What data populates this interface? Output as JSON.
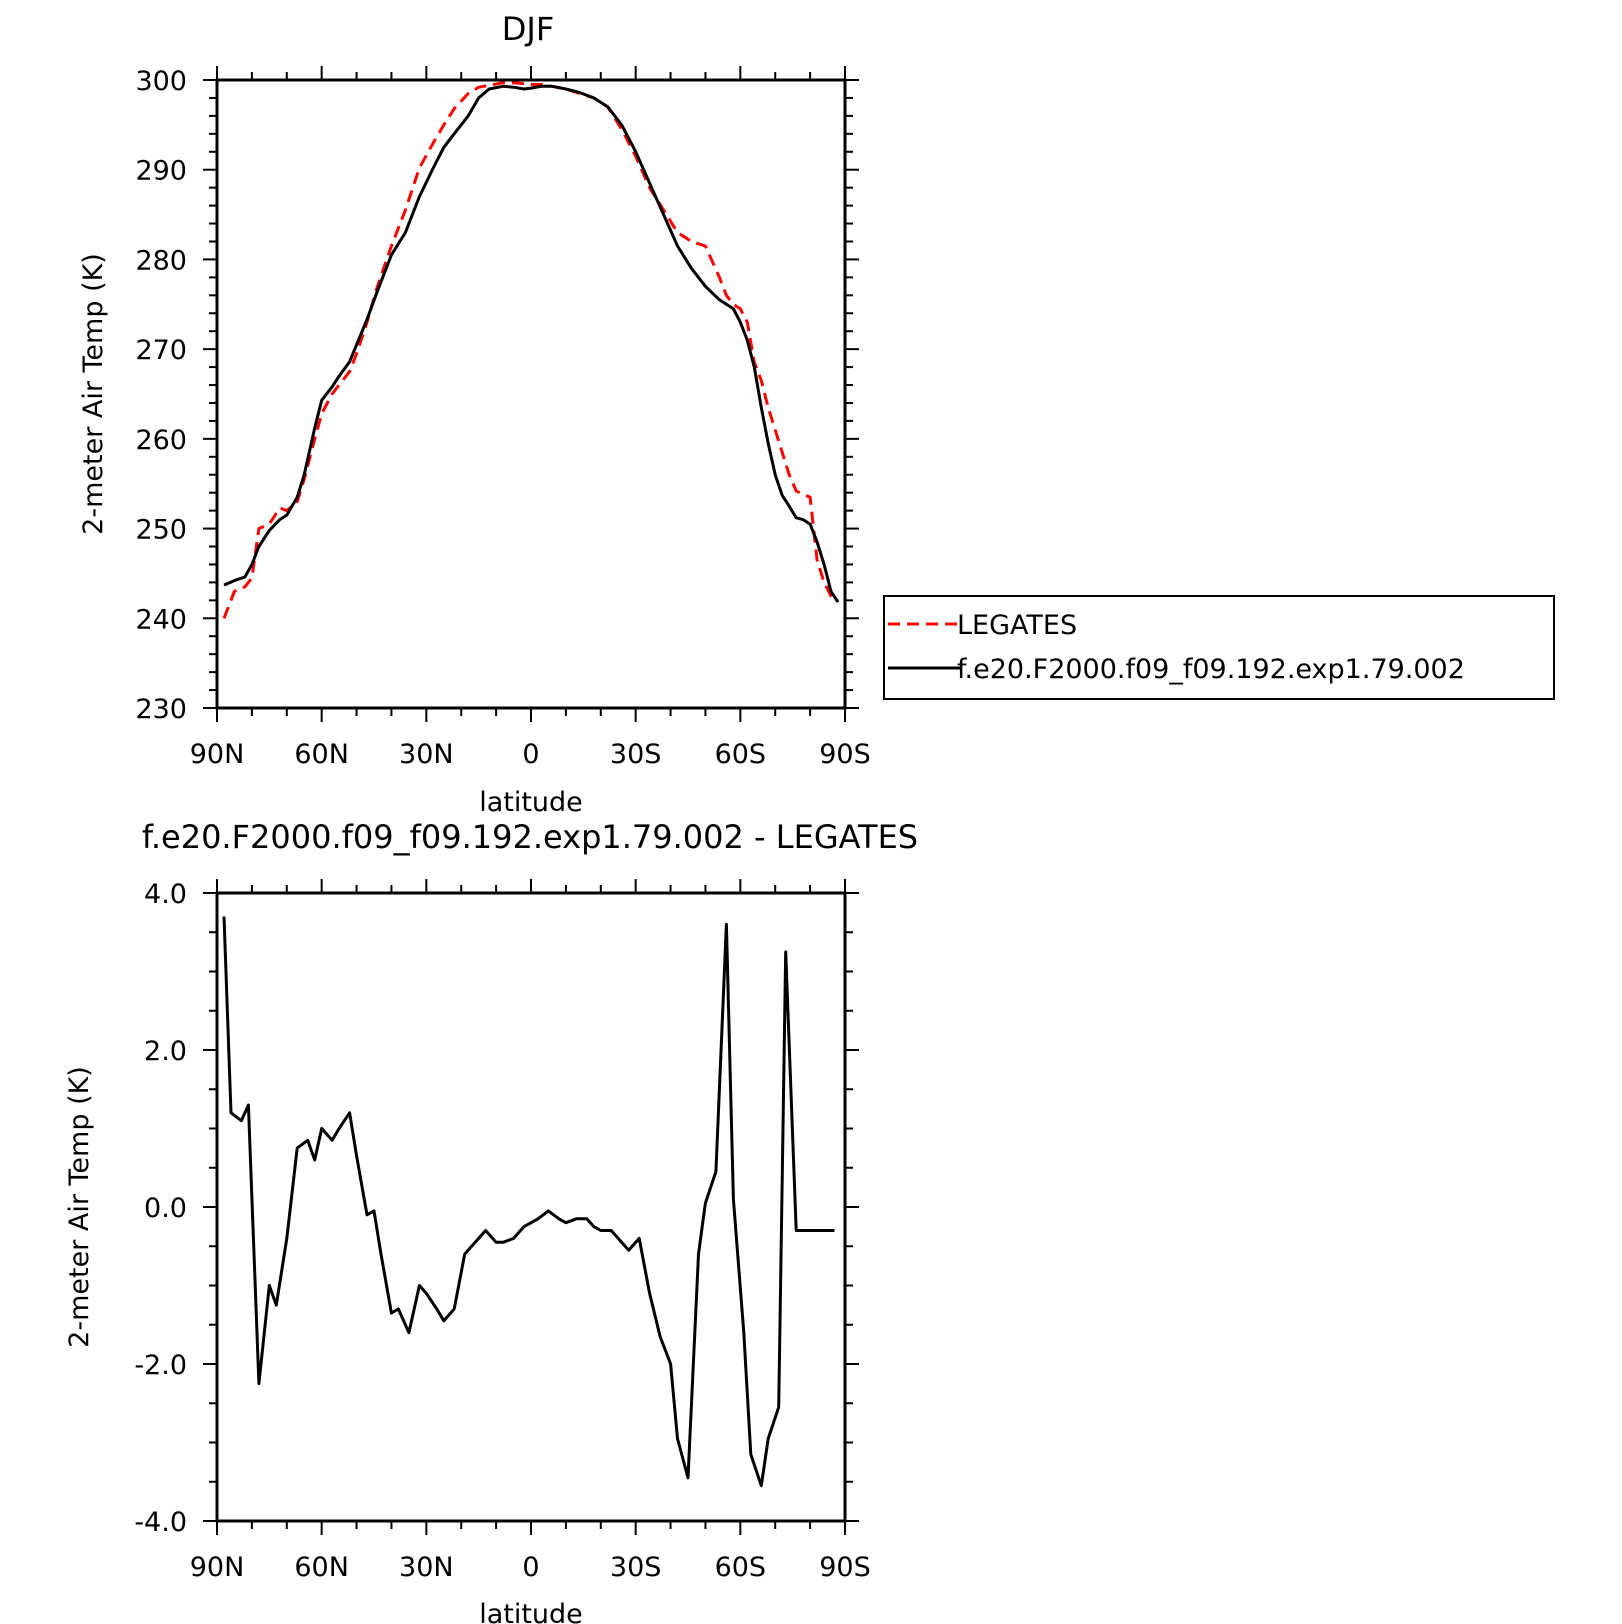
{
  "chart_data": [
    {
      "type": "line",
      "title": "DJF",
      "xlabel": "latitude",
      "ylabel": "2-meter Air Temp (K)",
      "xlim": [
        90,
        -90
      ],
      "ylim": [
        230,
        300
      ],
      "xticks": [
        {
          "value": 90,
          "label": "90N"
        },
        {
          "value": 60,
          "label": "60N"
        },
        {
          "value": 30,
          "label": "30N"
        },
        {
          "value": 0,
          "label": "0"
        },
        {
          "value": -30,
          "label": "30S"
        },
        {
          "value": -60,
          "label": "60S"
        },
        {
          "value": -90,
          "label": "90S"
        }
      ],
      "yticks": [
        {
          "value": 300,
          "label": "300"
        },
        {
          "value": 290,
          "label": "290"
        },
        {
          "value": 280,
          "label": "280"
        },
        {
          "value": 270,
          "label": "270"
        },
        {
          "value": 260,
          "label": "260"
        },
        {
          "value": 250,
          "label": "250"
        },
        {
          "value": 240,
          "label": "240"
        },
        {
          "value": 230,
          "label": "230"
        }
      ],
      "legend": {
        "placement": "right-outside"
      },
      "series": [
        {
          "name": "LEGATES",
          "color": "#ff0000",
          "dash": "dashed",
          "x": [
            88,
            85,
            82,
            80,
            78,
            75,
            72,
            70,
            67,
            65,
            62,
            60,
            57,
            55,
            52,
            50,
            47,
            44,
            40,
            36,
            32,
            28,
            25,
            22,
            18,
            15,
            12,
            8,
            5,
            2,
            0,
            -3,
            -6,
            -10,
            -14,
            -18,
            -22,
            -26,
            -30,
            -34,
            -38,
            -42,
            -46,
            -50,
            -54,
            -56,
            -58,
            -60,
            -62,
            -64,
            -66,
            -68,
            -70,
            -72,
            -74,
            -76,
            -78,
            -80,
            -82,
            -84,
            -86,
            -88
          ],
          "y": [
            240,
            243,
            243.5,
            244.5,
            250,
            250.5,
            252.3,
            252,
            253,
            255.5,
            260,
            262.8,
            265,
            266,
            267.5,
            269.5,
            273,
            277,
            281.5,
            285.5,
            290.2,
            293,
            295,
            296.8,
            298.5,
            299.2,
            299.4,
            299.7,
            299.7,
            299.6,
            299.5,
            299.5,
            299.3,
            299,
            298.5,
            298,
            297,
            294.5,
            291.5,
            288,
            285.5,
            283,
            282,
            281.5,
            278,
            276,
            275,
            274.5,
            273,
            268.5,
            266.5,
            263.5,
            261,
            258.5,
            256,
            254.2,
            253.8,
            253.5,
            246.5,
            244,
            242.5,
            242
          ]
        },
        {
          "name": "f.e20.F2000.f09_f09.192.exp1.79.002",
          "color": "#000000",
          "dash": "solid",
          "x": [
            88,
            85,
            82,
            80,
            78,
            75,
            72,
            70,
            67,
            65,
            62,
            60,
            57,
            55,
            52,
            50,
            47,
            44,
            40,
            36,
            32,
            28,
            25,
            22,
            18,
            15,
            12,
            8,
            5,
            2,
            0,
            -3,
            -6,
            -10,
            -14,
            -18,
            -22,
            -26,
            -30,
            -34,
            -38,
            -42,
            -46,
            -50,
            -54,
            -58,
            -60,
            -62,
            -64,
            -66,
            -68,
            -70,
            -72,
            -74,
            -76,
            -78,
            -80,
            -82,
            -84,
            -86,
            -88
          ],
          "y": [
            243.7,
            244.2,
            244.6,
            246,
            248,
            249.8,
            251,
            251.5,
            253.5,
            256,
            261.2,
            264.3,
            265.8,
            267,
            268.6,
            270.5,
            273.3,
            276.5,
            280.5,
            283,
            287,
            290.2,
            292.5,
            294,
            296,
            298,
            299,
            299.3,
            299.2,
            299,
            299.1,
            299.3,
            299.3,
            299,
            298.6,
            298,
            297,
            295,
            292,
            288.5,
            285,
            281.5,
            279,
            277,
            275.5,
            274.5,
            273,
            271,
            268,
            263.5,
            259.5,
            256,
            253.7,
            252.5,
            251.2,
            251,
            250.5,
            248.5,
            246,
            243,
            241.8
          ]
        }
      ]
    },
    {
      "type": "line",
      "title": "f.e20.F2000.f09_f09.192.exp1.79.002 - LEGATES",
      "xlabel": "latitude",
      "ylabel": "2-meter Air Temp (K)",
      "xlim": [
        90,
        -90
      ],
      "ylim": [
        -4,
        4
      ],
      "xticks": [
        {
          "value": 90,
          "label": "90N"
        },
        {
          "value": 60,
          "label": "60N"
        },
        {
          "value": 30,
          "label": "30N"
        },
        {
          "value": 0,
          "label": "0"
        },
        {
          "value": -30,
          "label": "30S"
        },
        {
          "value": -60,
          "label": "60S"
        },
        {
          "value": -90,
          "label": "90S"
        }
      ],
      "yticks": [
        {
          "value": 4,
          "label": "4.0"
        },
        {
          "value": 2,
          "label": "2.0"
        },
        {
          "value": 0,
          "label": "0.0"
        },
        {
          "value": -2,
          "label": "-2.0"
        },
        {
          "value": -4,
          "label": "-4.0"
        }
      ],
      "series": [
        {
          "color": "#000000",
          "dash": "solid",
          "x": [
            88,
            86,
            83,
            81,
            78,
            75,
            73,
            70,
            67,
            64,
            62,
            60,
            57,
            55,
            52,
            50,
            47,
            45,
            43,
            40,
            38,
            35,
            32,
            30,
            27,
            25,
            22,
            19,
            16,
            13,
            10,
            8,
            5,
            2,
            0,
            -2,
            -5,
            -8,
            -10,
            -13,
            -16,
            -18,
            -20,
            -23,
            -25,
            -28,
            -31,
            -34,
            -37,
            -40,
            -42,
            -45,
            -48,
            -50,
            -53,
            -56,
            -58,
            -61,
            -63,
            -66,
            -68,
            -71,
            -73,
            -76,
            -78,
            -80,
            -83,
            -85,
            -87
          ],
          "y": [
            3.7,
            1.2,
            1.1,
            1.3,
            -2.25,
            -1.0,
            -1.25,
            -0.4,
            0.75,
            0.85,
            0.6,
            1.0,
            0.85,
            1.0,
            1.2,
            0.65,
            -0.1,
            -0.05,
            -0.6,
            -1.35,
            -1.3,
            -1.6,
            -1.0,
            -1.1,
            -1.3,
            -1.45,
            -1.3,
            -0.6,
            -0.45,
            -0.3,
            -0.45,
            -0.45,
            -0.4,
            -0.25,
            -0.2,
            -0.15,
            -0.05,
            -0.15,
            -0.2,
            -0.15,
            -0.15,
            -0.25,
            -0.3,
            -0.3,
            -0.4,
            -0.55,
            -0.4,
            -1.1,
            -1.65,
            -2.0,
            -2.95,
            -3.45,
            -0.6,
            0.05,
            0.45,
            3.6,
            0.1,
            -1.6,
            -3.15,
            -3.55,
            -2.95,
            -2.55,
            3.25,
            -0.3,
            -0.3,
            -0.3,
            -0.3,
            -0.3,
            -0.3
          ]
        }
      ]
    }
  ]
}
